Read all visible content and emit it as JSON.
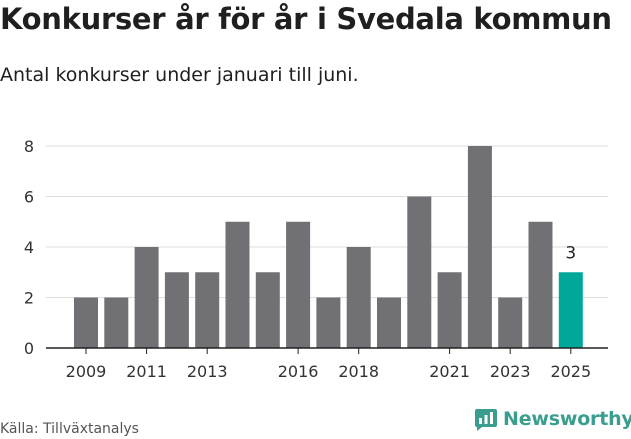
{
  "header": {
    "title": "Konkurser år för år i Svedala kommun",
    "subtitle": "Antal konkurser under januari till juni."
  },
  "footer": {
    "source": "Källa: Tillväxtanalys",
    "brand": "Newsworthy"
  },
  "colors": {
    "bar": "#717075",
    "highlight": "#00a89a",
    "grid": "#dddddd",
    "brand": "#3a9e8f"
  },
  "chart_data": {
    "type": "bar",
    "categories": [
      "2009",
      "2010",
      "2011",
      "2012",
      "2013",
      "2014",
      "2015",
      "2016",
      "2017",
      "2018",
      "2019",
      "2020",
      "2021",
      "2022",
      "2023",
      "2024",
      "2025"
    ],
    "x_tick_labels": [
      "2009",
      "2011",
      "2013",
      "2016",
      "2018",
      "2021",
      "2023",
      "2025"
    ],
    "values": [
      2,
      2,
      4,
      3,
      3,
      5,
      3,
      5,
      2,
      4,
      2,
      6,
      3,
      8,
      2,
      5,
      3
    ],
    "highlight_category": "2025",
    "data_labels": [
      {
        "category": "2025",
        "text": "3"
      }
    ],
    "yticks": [
      0,
      2,
      4,
      6,
      8
    ],
    "ylim": [
      0,
      8
    ],
    "grid": true,
    "xlabel": "",
    "ylabel": ""
  }
}
